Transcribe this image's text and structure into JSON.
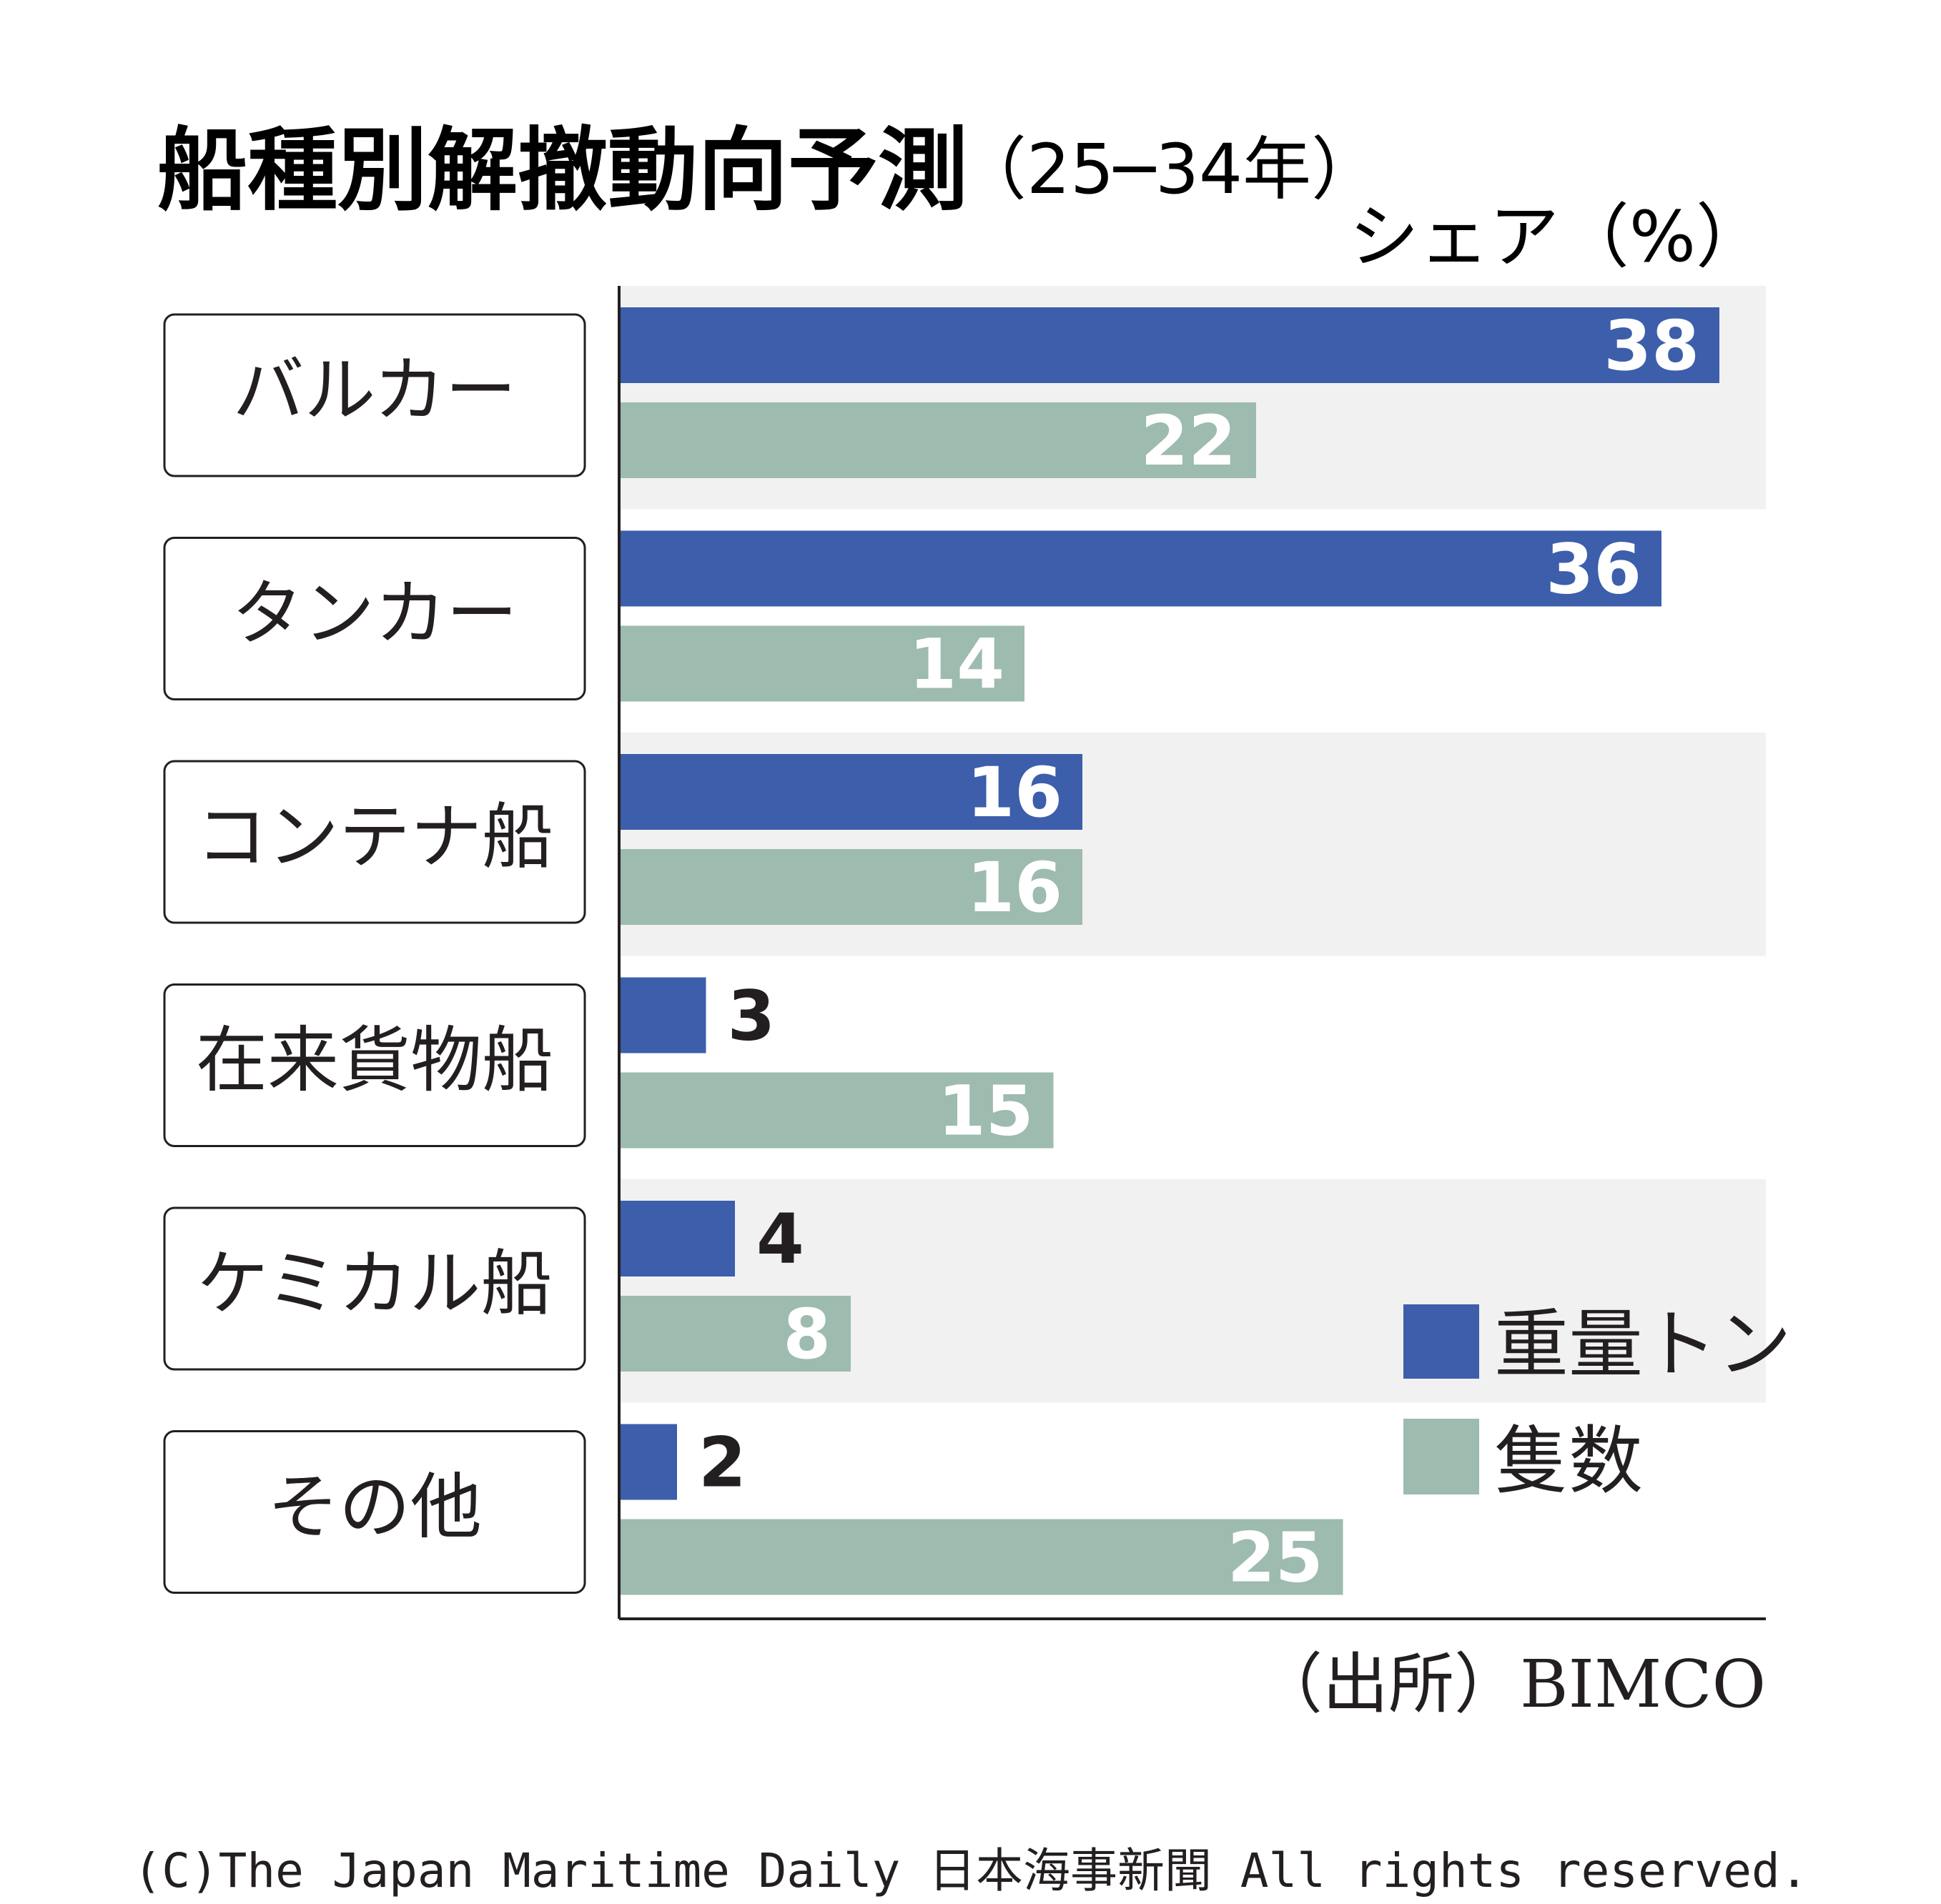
{
  "chart_data": {
    "type": "bar",
    "orientation": "horizontal",
    "title": "船種別解撤動向予測",
    "subtitle": "（25─34年）",
    "unit_label": "シェア（%）",
    "categories": [
      "バルカー",
      "タンカー",
      "コンテナ船",
      "在来貨物船",
      "ケミカル船",
      "その他"
    ],
    "series": [
      {
        "name": "重量トン",
        "color": "#3c5eab",
        "values": [
          38,
          36,
          16,
          3,
          4,
          2
        ]
      },
      {
        "name": "隻数",
        "color": "#9dbbae",
        "values": [
          22,
          14,
          16,
          15,
          8,
          25
        ]
      }
    ],
    "xlim": [
      0,
      40
    ],
    "legend_position": "bottom-right",
    "band_color": "#f1f1f1",
    "source": "（出所）BIMCO"
  },
  "copyright": "(C)The Japan Maritime Daily 日本海事新聞 All rights reserved."
}
